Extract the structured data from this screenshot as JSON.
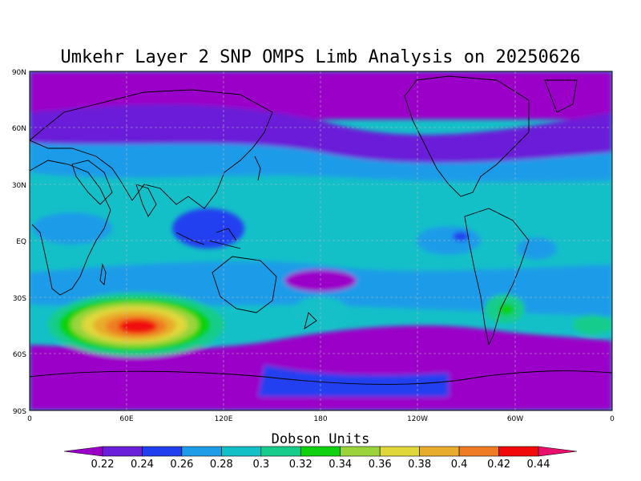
{
  "title": "Umkehr Layer 2 SNP OMPS Limb Analysis on 20250626",
  "map": {
    "lat_ticks": [
      "90N",
      "60N",
      "30N",
      "EQ",
      "30S",
      "60S",
      "90S"
    ],
    "lon_ticks": [
      "0",
      "60E",
      "120E",
      "180",
      "120W",
      "60W",
      "0"
    ],
    "grid_lines": true
  },
  "colorbar": {
    "title": "Dobson Units",
    "levels": [
      "0.22",
      "0.24",
      "0.26",
      "0.28",
      "0.3",
      "0.32",
      "0.34",
      "0.36",
      "0.38",
      "0.4",
      "0.42",
      "0.44"
    ],
    "colors": [
      "#9b00c8",
      "#6a1fd8",
      "#2040f0",
      "#1f9ce8",
      "#14c0c8",
      "#18cc8c",
      "#0fd10f",
      "#9ad43a",
      "#e0d83a",
      "#e8ac2c",
      "#ef7c22",
      "#f00a0a",
      "#e8106c"
    ]
  }
}
